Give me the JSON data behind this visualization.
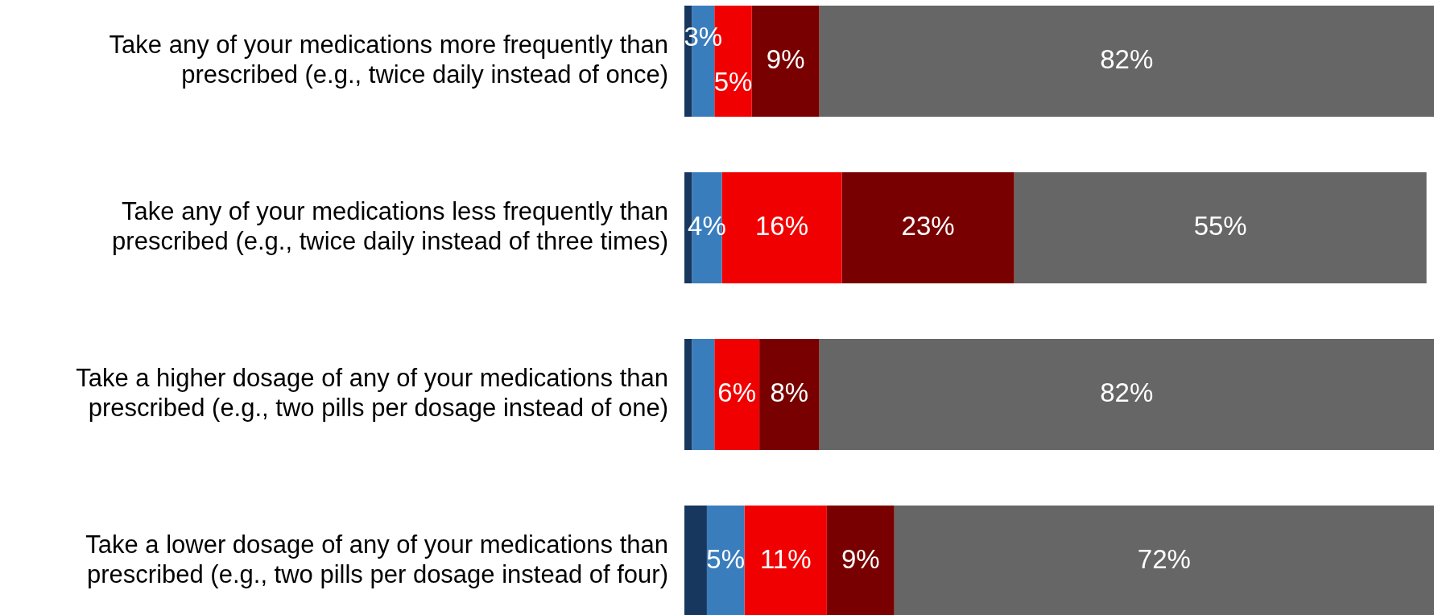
{
  "chart_data": {
    "type": "bar",
    "orientation": "horizontal",
    "stacked": true,
    "categories": [
      "Take any of your medications more frequently than prescribed (e.g., twice daily instead of once)",
      "Take any of your medications less frequently than prescribed (e.g., twice daily instead of three times)",
      "Take a higher dosage of any of your medications than prescribed (e.g., two pills per dosage instead of one)",
      "Take a lower dosage of any of your medications than prescribed (e.g., two pills per dosage instead of four)"
    ],
    "series": [
      {
        "color": "#17375e",
        "values": [
          1,
          1,
          1,
          3
        ]
      },
      {
        "color": "#3a7dbd",
        "values": [
          3,
          4,
          3,
          5
        ],
        "value_labels": [
          "3%",
          "4%",
          null,
          "5%"
        ]
      },
      {
        "color": "#f00000",
        "values": [
          5,
          16,
          6,
          11
        ],
        "value_labels": [
          "5%",
          "16%",
          "6%",
          "11%"
        ]
      },
      {
        "color": "#780000",
        "values": [
          9,
          23,
          8,
          9
        ],
        "value_labels": [
          "9%",
          "23%",
          "8%",
          "9%"
        ]
      },
      {
        "color": "#666666",
        "values": [
          82,
          55,
          82,
          72
        ],
        "value_labels": [
          "82%",
          "55%",
          "82%",
          "72%"
        ]
      }
    ],
    "xlim": [
      0,
      100
    ],
    "tick_labels": "y"
  }
}
